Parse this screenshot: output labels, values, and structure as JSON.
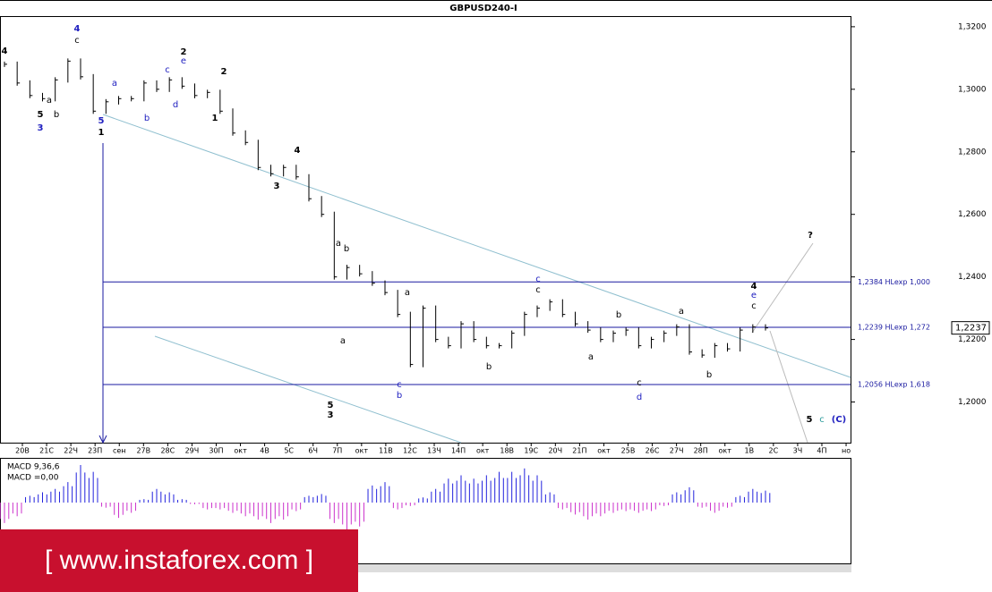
{
  "chart_data": {
    "type": "ohlc",
    "title": "GBPUSD240-I",
    "xlabels": [
      "20В",
      "21С",
      "22Ч",
      "23П",
      "сен",
      "27В",
      "28С",
      "29Ч",
      "30П",
      "окт",
      "4В",
      "5С",
      "6Ч",
      "7П",
      "окт",
      "11В",
      "12С",
      "13Ч",
      "14П",
      "окт",
      "18В",
      "19С",
      "20Ч",
      "21П",
      "окт",
      "25В",
      "26С",
      "27Ч",
      "28П",
      "окт",
      "1В",
      "2С",
      "3Ч",
      "4П",
      "но"
    ],
    "values": [
      1.308,
      1.302,
      1.298,
      1.297,
      1.303,
      1.309,
      1.304,
      1.293,
      1.296,
      1.297,
      1.297,
      1.302,
      1.3,
      1.303,
      1.301,
      1.298,
      1.299,
      1.293,
      1.286,
      1.283,
      1.275,
      1.273,
      1.275,
      1.272,
      1.265,
      1.26,
      1.24,
      1.243,
      1.241,
      1.238,
      1.235,
      1.228,
      1.212,
      1.23,
      1.22,
      1.218,
      1.225,
      1.22,
      1.218,
      1.218,
      1.222,
      1.228,
      1.23,
      1.232,
      1.228,
      1.225,
      1.223,
      1.22,
      1.222,
      1.223,
      1.218,
      1.22,
      1.222,
      1.224,
      1.216,
      1.215,
      1.218,
      1.217,
      1.223,
      1.224,
      1.2237
    ],
    "color": "#000000",
    "ylim": [
      1.187,
      1.3234
    ],
    "yticks": [
      {
        "value": 1.2,
        "label": "1,2000"
      },
      {
        "value": 1.22,
        "label": "1,2200"
      },
      {
        "value": 1.24,
        "label": "1,2400"
      },
      {
        "value": 1.26,
        "label": "1,2600"
      },
      {
        "value": 1.28,
        "label": "1,2800"
      },
      {
        "value": 1.3,
        "label": "1,3000"
      },
      {
        "value": 1.32,
        "label": "1,3200"
      }
    ],
    "levels": [
      {
        "value": 1.2384,
        "label": "1,2384 HLexp 1,000"
      },
      {
        "value": 1.2239,
        "label": "1,2239 HLexp 1,272"
      },
      {
        "value": 1.2056,
        "label": "1,2056 HLexp 1,618"
      }
    ],
    "level_color": "#1a1aa0",
    "last_price": {
      "value": 1.2237,
      "label": "1,2237"
    },
    "annotations": [
      {
        "text": "4",
        "color": "#2020c0"
      },
      {
        "text": "c",
        "color": "#000000"
      },
      {
        "text": "4",
        "color": "#000000"
      },
      {
        "text": "a",
        "color": "#000000"
      },
      {
        "text": "5",
        "color": "#000000"
      },
      {
        "text": "b",
        "color": "#000000"
      },
      {
        "text": "3",
        "color": "#2020c0"
      },
      {
        "text": "a",
        "color": "#2020c0"
      },
      {
        "text": "5",
        "color": "#2020c0"
      },
      {
        "text": "1",
        "color": "#000000"
      },
      {
        "text": "b",
        "color": "#2020c0"
      },
      {
        "text": "c",
        "color": "#2020c0"
      },
      {
        "text": "d",
        "color": "#2020c0"
      },
      {
        "text": "2",
        "color": "#000000"
      },
      {
        "text": "e",
        "color": "#2020c0"
      },
      {
        "text": "2",
        "color": "#000000"
      },
      {
        "text": "1",
        "color": "#000000"
      },
      {
        "text": "4",
        "color": "#000000"
      },
      {
        "text": "3",
        "color": "#000000"
      },
      {
        "text": "a",
        "color": "#000000"
      },
      {
        "text": "b",
        "color": "#000000"
      },
      {
        "text": "a",
        "color": "#000000"
      },
      {
        "text": "5",
        "color": "#000000"
      },
      {
        "text": "3",
        "color": "#000000"
      },
      {
        "text": "a",
        "color": "#000000"
      },
      {
        "text": "c",
        "color": "#2020c0"
      },
      {
        "text": "b",
        "color": "#2020c0"
      },
      {
        "text": "b",
        "color": "#000000"
      },
      {
        "text": "c",
        "color": "#2020c0"
      },
      {
        "text": "c",
        "color": "#000000"
      },
      {
        "text": "b",
        "color": "#000000"
      },
      {
        "text": "a",
        "color": "#000000"
      },
      {
        "text": "c",
        "color": "#000000"
      },
      {
        "text": "d",
        "color": "#2020c0"
      },
      {
        "text": "a",
        "color": "#000000"
      },
      {
        "text": "b",
        "color": "#000000"
      },
      {
        "text": "4",
        "color": "#000000"
      },
      {
        "text": "e",
        "color": "#2020c0"
      },
      {
        "text": "c",
        "color": "#000000"
      },
      {
        "text": "?",
        "color": "#000000"
      },
      {
        "text": "5",
        "color": "#000000"
      },
      {
        "text": "c",
        "color": "#2a9a9a"
      },
      {
        "text": "(C)",
        "color": "#2020c0"
      }
    ],
    "macd": {
      "title": "MACD 9,36,6",
      "label": "MACD =0,00",
      "up_color": "#2222dd",
      "down_color": "#cc33cc",
      "values": [
        -0.0012,
        -0.0008,
        0.0004,
        0.0006,
        0.0008,
        0.0012,
        0.0022,
        0.0018,
        -0.0003,
        -0.0009,
        -0.0006,
        0.0002,
        0.0008,
        0.0006,
        0.0002,
        -0.0001,
        -0.0004,
        -0.0004,
        -0.0006,
        -0.0008,
        -0.001,
        -0.0012,
        -0.001,
        -0.0005,
        0.0004,
        0.0005,
        -0.0012,
        -0.0016,
        -0.0014,
        0.001,
        0.0012,
        -0.0004,
        -0.0002,
        0.0003,
        0.0008,
        0.0014,
        0.0016,
        0.0014,
        0.0016,
        0.0018,
        0.0018,
        0.002,
        0.0016,
        0.0006,
        -0.0004,
        -0.0007,
        -0.001,
        -0.0008,
        -0.0006,
        -0.0005,
        -0.0006,
        -0.0005,
        -0.0002,
        0.0006,
        0.0009,
        -0.0003,
        -0.0006,
        -0.0003,
        0.0004,
        0.0008,
        0.0007
      ]
    }
  },
  "watermark": "[  www.instaforex.com ]"
}
